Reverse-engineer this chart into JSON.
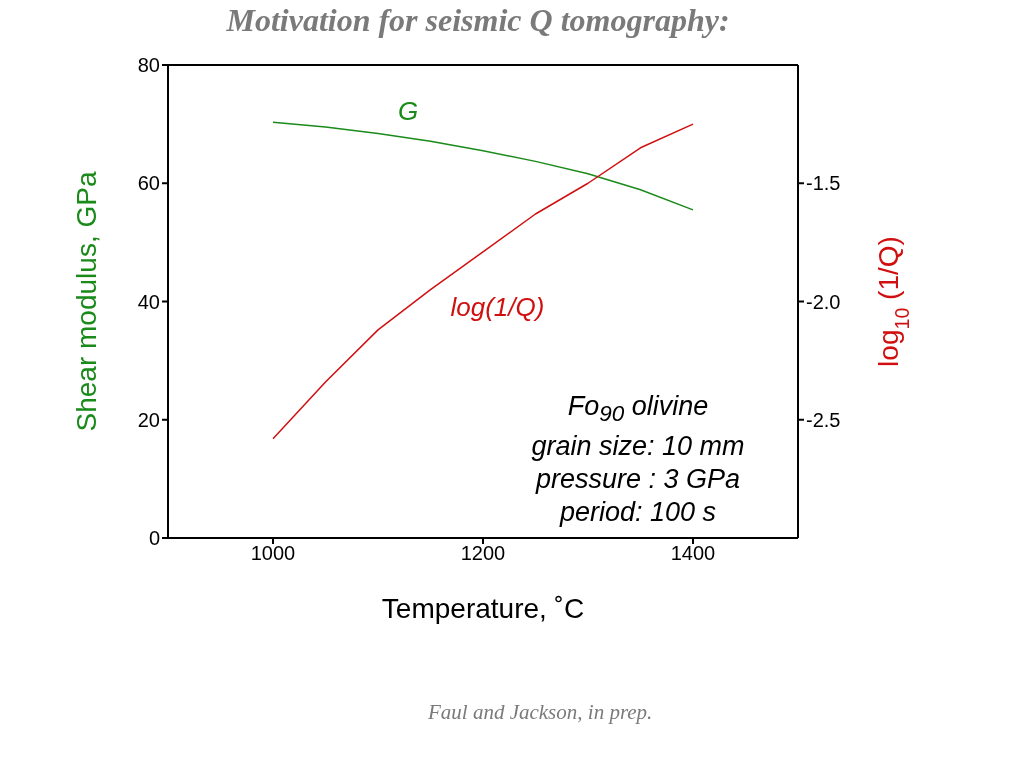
{
  "chart_data": {
    "type": "line",
    "title": "Motivation for seismic Q tomography:",
    "xlabel": "Temperature, ˚C",
    "ylabel": "Shear modulus, GPa",
    "y2label": "log$_{10}$ (1/Q)",
    "xlim": [
      900,
      1500
    ],
    "xticks": [
      1000,
      1200,
      1400
    ],
    "ylim": [
      0,
      80
    ],
    "yticks": [
      0,
      20,
      40,
      60,
      80
    ],
    "y2lim": [
      -3,
      -1
    ],
    "y2ticks": [
      {
        "value": -1.5,
        "label": "-1.5"
      },
      {
        "value": -2,
        "label": "-2.0"
      },
      {
        "value": -2.5,
        "label": "-2.5"
      }
    ],
    "marker": "none",
    "line_style": "solid",
    "series": [
      {
        "name": "G",
        "color": "#1a8a1a",
        "x": [
          1000,
          1050,
          1100,
          1150,
          1200,
          1250,
          1300,
          1350,
          1400
        ],
        "values": [
          70.3,
          69.5,
          68.4,
          67.1,
          65.5,
          63.7,
          61.6,
          58.9,
          55.5
        ]
      },
      {
        "name": "log(1/Q)",
        "color": "#d01010",
        "axis": "y2",
        "x": [
          1000,
          1050,
          1100,
          1150,
          1200,
          1250,
          1300,
          1350,
          1400
        ],
        "values": [
          -2.58,
          -2.34,
          -2.12,
          -1.95,
          -1.79,
          -1.63,
          -1.5,
          -1.35,
          -1.25
        ]
      }
    ],
    "annotations": [
      "Fo$_{90}$ olivine",
      "grain size: 10 mm",
      "pressure : 3 GPa",
      "period: 100 s",
      "Faul and Jackson, in prep."
    ]
  }
}
